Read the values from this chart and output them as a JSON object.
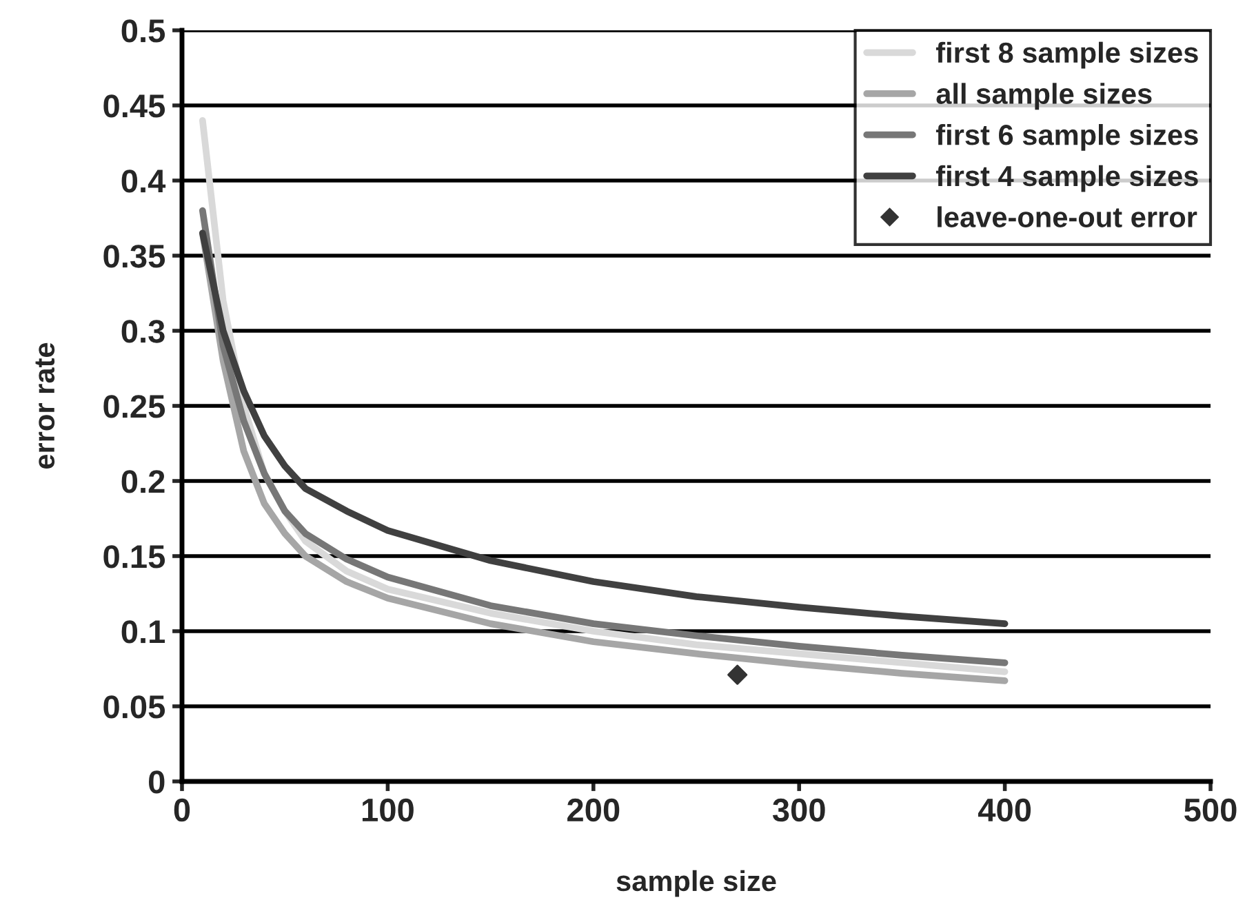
{
  "chart_data": {
    "type": "line",
    "xlabel": "sample size",
    "ylabel": "error rate",
    "xlim": [
      0,
      500
    ],
    "xticks": [
      0,
      100,
      200,
      300,
      400,
      500
    ],
    "ylim": [
      0,
      0.5
    ],
    "yticks": [
      0,
      0.05,
      0.1,
      0.15,
      0.2,
      0.25,
      0.3,
      0.35,
      0.4,
      0.45,
      0.5
    ],
    "grid": "y",
    "legend": "top right",
    "marker": "none",
    "line_style": "solid",
    "x": [
      10,
      20,
      30,
      40,
      50,
      60,
      80,
      100,
      150,
      200,
      250,
      300,
      350,
      400
    ],
    "series": [
      {
        "name": "first 8 sample sizes",
        "color": "#d9d9d9",
        "values": [
          0.44,
          0.32,
          0.25,
          0.205,
          0.18,
          0.16,
          0.14,
          0.128,
          0.112,
          0.1,
          0.091,
          0.085,
          0.079,
          0.073
        ]
      },
      {
        "name": "all sample sizes",
        "color": "#a6a6a6",
        "values": [
          0.365,
          0.28,
          0.22,
          0.185,
          0.165,
          0.15,
          0.133,
          0.122,
          0.105,
          0.093,
          0.085,
          0.078,
          0.072,
          0.067
        ]
      },
      {
        "name": "first 6 sample sizes",
        "color": "#777777",
        "values": [
          0.38,
          0.29,
          0.24,
          0.205,
          0.18,
          0.165,
          0.148,
          0.136,
          0.117,
          0.105,
          0.097,
          0.09,
          0.084,
          0.079
        ]
      },
      {
        "name": "first 4 sample sizes",
        "color": "#404040",
        "values": [
          0.365,
          0.3,
          0.26,
          0.23,
          0.21,
          0.195,
          0.18,
          0.167,
          0.147,
          0.133,
          0.123,
          0.116,
          0.11,
          0.105
        ]
      },
      {
        "name": "leave-one-out error",
        "type": "scatter",
        "marker": "diamond",
        "color": "#333333",
        "x": [
          270
        ],
        "values": [
          0.071
        ]
      }
    ]
  }
}
